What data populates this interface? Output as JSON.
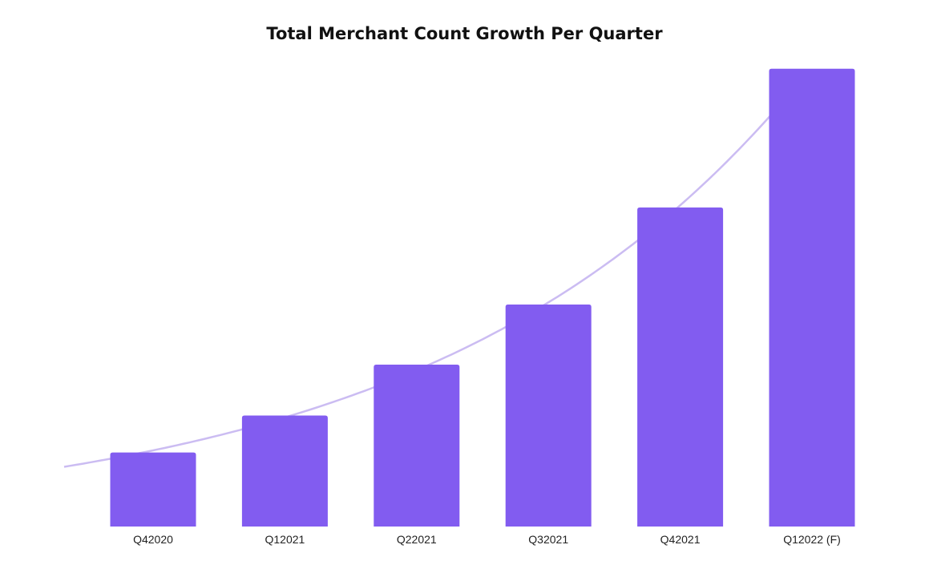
{
  "chart_data": {
    "type": "bar",
    "title": "Total Merchant Count Growth Per Quarter",
    "xlabel": "",
    "ylabel": "",
    "categories": [
      "Q42020",
      "Q12021",
      "Q22021",
      "Q32021",
      "Q42021",
      "Q12022 (F)"
    ],
    "values": [
      16,
      24,
      35,
      48,
      69,
      99
    ],
    "ylim": [
      0,
      100
    ],
    "trendline": true,
    "grid": false,
    "legend": "none",
    "colors": {
      "bar": "#825cf0",
      "trend": "#cbbcf2"
    }
  }
}
